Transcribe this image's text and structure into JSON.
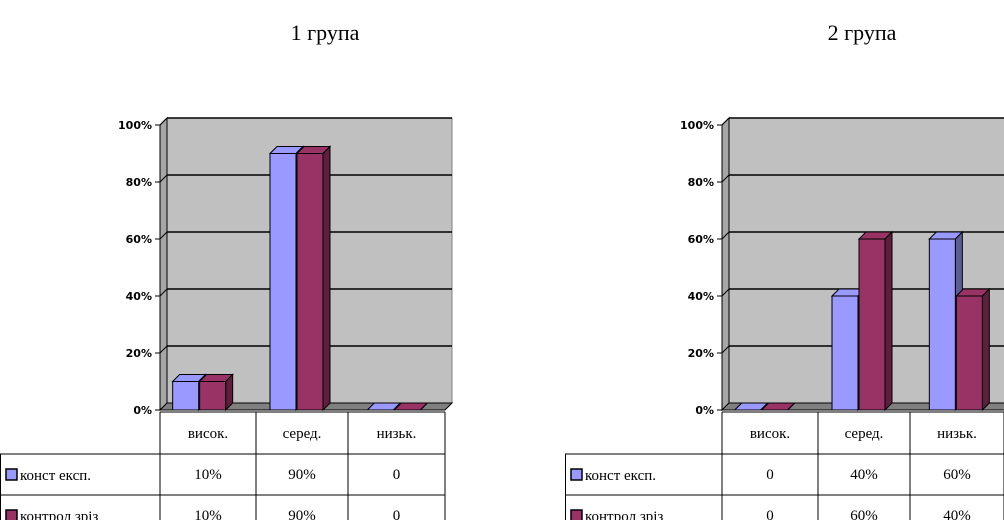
{
  "chart_data": [
    {
      "type": "bar",
      "title": "1 група",
      "categories": [
        "висок.",
        "серед.",
        "низьк."
      ],
      "ylim": [
        0,
        100
      ],
      "yticks": [
        "0%",
        "20%",
        "40%",
        "60%",
        "80%",
        "100%"
      ],
      "grid": true,
      "legend": "data-table-rows",
      "series": [
        {
          "name": "конст експ.",
          "values": [
            10,
            90,
            0
          ],
          "labels": [
            "10%",
            "90%",
            "0"
          ]
        },
        {
          "name": "контрол зріз",
          "values": [
            10,
            90,
            0
          ],
          "labels": [
            "10%",
            "90%",
            "0"
          ]
        }
      ]
    },
    {
      "type": "bar",
      "title": "2  група",
      "categories": [
        "висок.",
        "серед.",
        "низьк."
      ],
      "ylim": [
        0,
        100
      ],
      "yticks": [
        "0%",
        "20%",
        "40%",
        "60%",
        "80%",
        "100%"
      ],
      "grid": true,
      "legend": "data-table-rows",
      "series": [
        {
          "name": "конст експ.",
          "values": [
            0,
            40,
            60
          ],
          "labels": [
            "0",
            "40%",
            "60%"
          ]
        },
        {
          "name": "контрол зріз",
          "values": [
            0,
            60,
            40
          ],
          "labels": [
            "0",
            "60%",
            "40%"
          ]
        }
      ]
    }
  ],
  "colors": {
    "series": [
      "#9999ff",
      "#993366"
    ],
    "series_dark": [
      "#5c5c99",
      "#5c1f3d"
    ],
    "plot_back": "#c0c0c0",
    "plot_wall": "#a6a6a6",
    "plot_floor": "#808080"
  }
}
